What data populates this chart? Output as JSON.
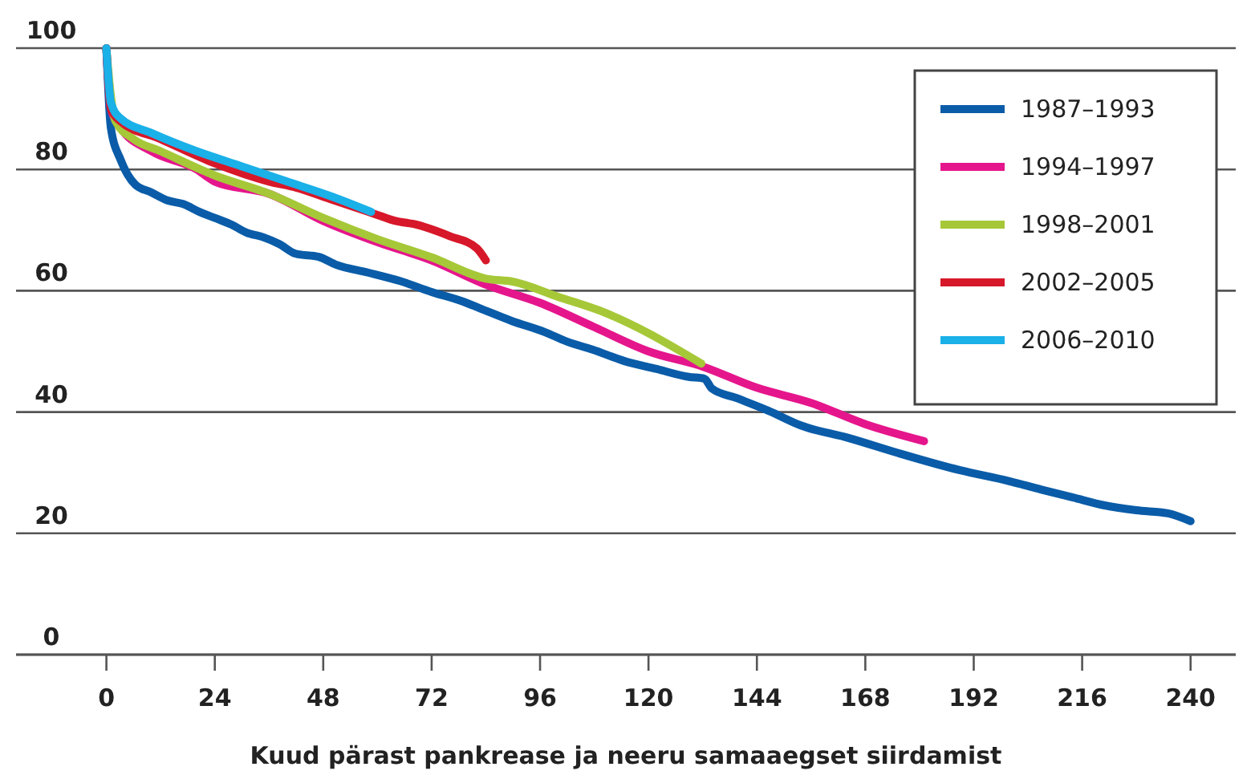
{
  "chart_data": {
    "type": "line",
    "xlabel": "Kuud pärast pankrease ja neeru samaaegset siirdamist",
    "xlim": [
      -20,
      250
    ],
    "ylim": [
      0,
      100
    ],
    "xticks": [
      0,
      24,
      48,
      72,
      96,
      120,
      144,
      168,
      192,
      216,
      240
    ],
    "yticks": [
      0,
      20,
      40,
      60,
      80,
      100
    ],
    "grid": "y",
    "legend": "top right",
    "marker": "none",
    "line_style": "solid",
    "series": [
      {
        "name": "1987–1993",
        "color": "#0a5ca8",
        "x": [
          0,
          1,
          3.2,
          6.4,
          10,
          13.5,
          17,
          20.6,
          24,
          27.7,
          31,
          34.8,
          38.3,
          41.9,
          47,
          50.8,
          57.9,
          65,
          72,
          79,
          82.7,
          89.8,
          97,
          102,
          107.6,
          114.7,
          121.8,
          128.9,
          132.4,
          134,
          139.5,
          146.6,
          153.7,
          164.4,
          175,
          189,
          199.9,
          207,
          214,
          221,
          228,
          235,
          240
        ],
        "values": [
          100,
          86.8,
          81.5,
          77.5,
          76.2,
          74.9,
          74.3,
          73,
          72,
          70.9,
          69.6,
          68.8,
          67.7,
          66.1,
          65.6,
          64.3,
          63,
          61.6,
          59.8,
          58.2,
          57.1,
          55,
          53.2,
          51.6,
          50.3,
          48.4,
          47.1,
          45.8,
          45.5,
          43.9,
          42.3,
          40.2,
          37.8,
          35.7,
          33.3,
          30.4,
          28.6,
          27.2,
          25.9,
          24.6,
          23.8,
          23.3,
          22
        ]
      },
      {
        "name": "1994–1997",
        "color": "#e5168c",
        "x": [
          0,
          1,
          3,
          10,
          20,
          24,
          36,
          48,
          60,
          72,
          84,
          96,
          108,
          120,
          132,
          144,
          156,
          168,
          181
        ],
        "values": [
          100,
          90,
          87,
          83,
          80,
          78,
          76,
          71.5,
          68,
          65,
          61,
          58,
          54,
          50,
          47.5,
          44,
          41.5,
          38,
          35.2
        ]
      },
      {
        "name": "1998–2001",
        "color": "#a6c838",
        "x": [
          0,
          1,
          2,
          6,
          12,
          24,
          36,
          48,
          60,
          72,
          84,
          90,
          100,
          110,
          120,
          126,
          131.7
        ],
        "values": [
          100,
          92,
          88,
          85,
          83,
          79,
          76,
          72,
          68.5,
          65.5,
          62,
          61.5,
          59,
          56.5,
          53,
          50.5,
          48
        ]
      },
      {
        "name": "2002–2005",
        "color": "#d7182a",
        "x": [
          0,
          1,
          3,
          12,
          24,
          36,
          42,
          50,
          58,
          60,
          64,
          68,
          76,
          82,
          84
        ],
        "values": [
          100,
          90,
          88,
          85,
          81,
          78,
          77,
          75,
          73,
          72.5,
          71.5,
          71,
          69,
          67,
          65
        ]
      },
      {
        "name": "2006–2010",
        "color": "#1ab0e8",
        "x": [
          0,
          1,
          3,
          10,
          20,
          30,
          40,
          50,
          58.6
        ],
        "values": [
          100,
          91,
          88.5,
          86,
          83,
          80.5,
          78,
          75.5,
          73
        ]
      }
    ]
  }
}
